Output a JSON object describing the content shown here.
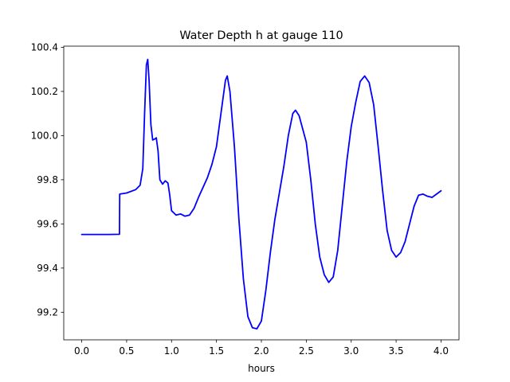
{
  "chart_data": {
    "type": "line",
    "title": "Water Depth h at gauge 110",
    "xlabel": "hours",
    "ylabel": "",
    "xlim": [
      -0.2,
      4.2
    ],
    "ylim": [
      99.075,
      100.405
    ],
    "xticks": [
      "0.0",
      "0.5",
      "1.0",
      "1.5",
      "2.0",
      "2.5",
      "3.0",
      "3.5",
      "4.0"
    ],
    "yticks": [
      "99.2",
      "99.4",
      "99.6",
      "99.8",
      "100.0",
      "100.2",
      "100.4"
    ],
    "grid": false,
    "series": [
      {
        "color": "#0000ff",
        "points": [
          [
            0.0,
            99.552
          ],
          [
            0.3,
            99.552
          ],
          [
            0.42,
            99.553
          ],
          [
            0.423,
            99.735
          ],
          [
            0.5,
            99.74
          ],
          [
            0.6,
            99.755
          ],
          [
            0.65,
            99.775
          ],
          [
            0.68,
            99.85
          ],
          [
            0.7,
            100.1
          ],
          [
            0.72,
            100.32
          ],
          [
            0.735,
            100.345
          ],
          [
            0.75,
            100.25
          ],
          [
            0.77,
            100.05
          ],
          [
            0.79,
            99.98
          ],
          [
            0.815,
            99.985
          ],
          [
            0.83,
            99.99
          ],
          [
            0.85,
            99.93
          ],
          [
            0.87,
            99.8
          ],
          [
            0.9,
            99.78
          ],
          [
            0.93,
            99.795
          ],
          [
            0.96,
            99.785
          ],
          [
            0.98,
            99.73
          ],
          [
            1.0,
            99.66
          ],
          [
            1.05,
            99.64
          ],
          [
            1.1,
            99.645
          ],
          [
            1.15,
            99.635
          ],
          [
            1.2,
            99.64
          ],
          [
            1.25,
            99.67
          ],
          [
            1.3,
            99.72
          ],
          [
            1.4,
            99.81
          ],
          [
            1.45,
            99.87
          ],
          [
            1.5,
            99.95
          ],
          [
            1.55,
            100.1
          ],
          [
            1.6,
            100.25
          ],
          [
            1.62,
            100.27
          ],
          [
            1.65,
            100.2
          ],
          [
            1.7,
            99.95
          ],
          [
            1.75,
            99.62
          ],
          [
            1.8,
            99.35
          ],
          [
            1.85,
            99.18
          ],
          [
            1.9,
            99.13
          ],
          [
            1.95,
            99.125
          ],
          [
            2.0,
            99.16
          ],
          [
            2.05,
            99.3
          ],
          [
            2.1,
            99.47
          ],
          [
            2.15,
            99.62
          ],
          [
            2.2,
            99.74
          ],
          [
            2.25,
            99.86
          ],
          [
            2.3,
            100.0
          ],
          [
            2.35,
            100.1
          ],
          [
            2.38,
            100.115
          ],
          [
            2.42,
            100.09
          ],
          [
            2.5,
            99.97
          ],
          [
            2.55,
            99.8
          ],
          [
            2.6,
            99.6
          ],
          [
            2.65,
            99.45
          ],
          [
            2.7,
            99.37
          ],
          [
            2.75,
            99.335
          ],
          [
            2.8,
            99.36
          ],
          [
            2.85,
            99.48
          ],
          [
            2.9,
            99.68
          ],
          [
            2.95,
            99.88
          ],
          [
            3.0,
            100.04
          ],
          [
            3.05,
            100.15
          ],
          [
            3.1,
            100.245
          ],
          [
            3.15,
            100.27
          ],
          [
            3.2,
            100.24
          ],
          [
            3.25,
            100.14
          ],
          [
            3.3,
            99.95
          ],
          [
            3.35,
            99.75
          ],
          [
            3.4,
            99.57
          ],
          [
            3.45,
            99.48
          ],
          [
            3.5,
            99.45
          ],
          [
            3.55,
            99.47
          ],
          [
            3.6,
            99.52
          ],
          [
            3.65,
            99.6
          ],
          [
            3.7,
            99.68
          ],
          [
            3.75,
            99.73
          ],
          [
            3.8,
            99.735
          ],
          [
            3.85,
            99.725
          ],
          [
            3.9,
            99.72
          ],
          [
            3.95,
            99.735
          ],
          [
            4.0,
            99.75
          ]
        ]
      }
    ]
  }
}
